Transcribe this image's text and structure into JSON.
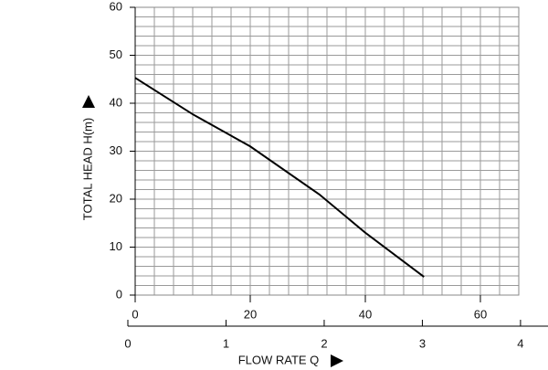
{
  "chart_data": {
    "type": "line",
    "y_label": "TOTAL HEAD H(m)",
    "x_label": "FLOW RATE Q",
    "x": [
      0,
      10,
      20,
      32,
      40,
      50.2
    ],
    "series": [
      {
        "values": [
          45.3,
          37.7,
          31,
          21,
          13,
          3.8
        ],
        "color": "#000000"
      }
    ],
    "xlim": [
      0,
      66.67
    ],
    "xticks": [
      0,
      20,
      40,
      60
    ],
    "ylim": [
      0,
      60
    ],
    "yticks": [
      0,
      10,
      20,
      30,
      40,
      50,
      60
    ],
    "x2lim": [
      0,
      4.28
    ],
    "x2ticks": [
      0,
      1,
      2,
      3,
      4
    ],
    "grid": true
  }
}
